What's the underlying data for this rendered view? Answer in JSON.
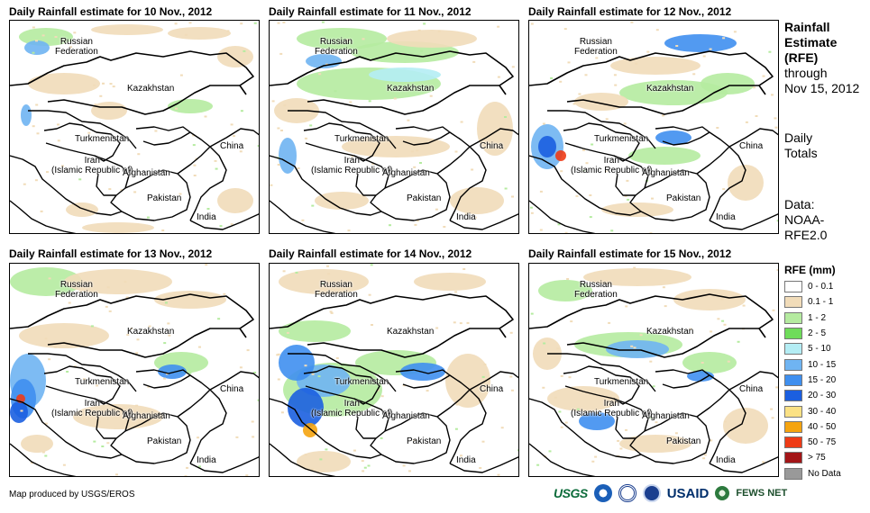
{
  "panels": [
    {
      "title": "Daily Rainfall estimate for 10 Nov., 2012"
    },
    {
      "title": "Daily Rainfall estimate for 11 Nov., 2012"
    },
    {
      "title": "Daily Rainfall estimate for 12 Nov., 2012"
    },
    {
      "title": "Daily Rainfall estimate for 13 Nov., 2012"
    },
    {
      "title": "Daily Rainfall estimate for 14 Nov., 2012"
    },
    {
      "title": "Daily Rainfall estimate for 15 Nov., 2012"
    }
  ],
  "place_labels": {
    "russia": "Russian\nFederation",
    "kazakhstan": "Kazakhstan",
    "turkmenistan": "Turkmenistan",
    "iran": "Iran\n(Islamic Republic of)",
    "afghanistan": "Afghanistan",
    "pakistan": "Pakistan",
    "china": "China",
    "india": "India"
  },
  "sidebar": {
    "title_line1": "Rainfall",
    "title_line2": "Estimate",
    "title_line3": "(RFE)",
    "through": "through",
    "date": "Nov 15, 2012",
    "daily": "Daily",
    "totals": "Totals",
    "data_label": "Data:",
    "source1": "NOAA-",
    "source2": "RFE2.0"
  },
  "legend": {
    "title": "RFE (mm)",
    "items": [
      {
        "label": "0 - 0.1",
        "color": "#ffffff"
      },
      {
        "label": "0.1 - 1",
        "color": "#f1dcb9"
      },
      {
        "label": "1 - 2",
        "color": "#b5eba0"
      },
      {
        "label": "2 - 5",
        "color": "#6fdc5a"
      },
      {
        "label": "5 - 10",
        "color": "#b4edf4"
      },
      {
        "label": "10 - 15",
        "color": "#6fb4f2"
      },
      {
        "label": "15 - 20",
        "color": "#3f8fef"
      },
      {
        "label": "20 - 30",
        "color": "#1b5fe0"
      },
      {
        "label": "30 - 40",
        "color": "#fbe184"
      },
      {
        "label": "40 - 50",
        "color": "#f5a40f"
      },
      {
        "label": "50 - 75",
        "color": "#ee3b16"
      },
      {
        "label": "> 75",
        "color": "#a31517"
      },
      {
        "label": "No Data",
        "color": "#999999"
      }
    ]
  },
  "footer": {
    "credit": "Map produced by USGS/EROS"
  },
  "logos": {
    "usgs": "USGS",
    "usaid": "USAID",
    "fews": "FEWS NET"
  }
}
